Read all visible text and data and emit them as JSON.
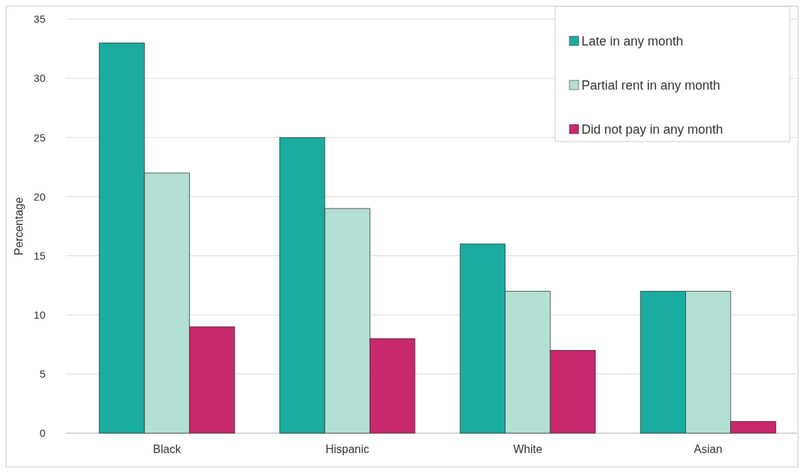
{
  "chart_data": {
    "type": "bar",
    "ylabel": "Percentage",
    "categories": [
      "Black",
      "Hispanic",
      "White",
      "Asian"
    ],
    "series": [
      {
        "name": "Late in any month",
        "color": "#1aaca0",
        "values": [
          33,
          25,
          16,
          12
        ]
      },
      {
        "name": "Partial rent in any month",
        "color": "#b2e0d4",
        "values": [
          22,
          19,
          12,
          12
        ]
      },
      {
        "name": "Did not pay in any month",
        "color": "#c8286e",
        "values": [
          9,
          8,
          7,
          1
        ]
      }
    ],
    "ylim": [
      0,
      35
    ],
    "yticks": [
      0,
      5,
      10,
      15,
      20,
      25,
      30,
      35
    ],
    "grid": "y",
    "legend": "top right"
  }
}
